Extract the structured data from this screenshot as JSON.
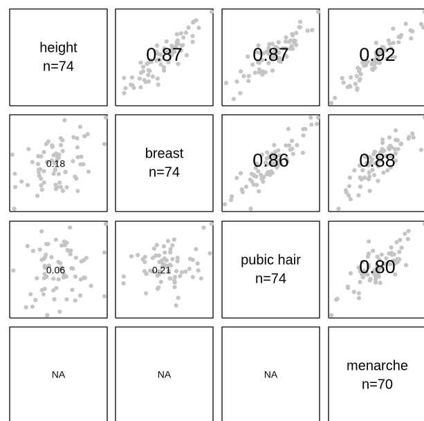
{
  "chart_data": {
    "type": "scatter",
    "title": "",
    "variables": [
      {
        "name": "height",
        "n_label": "n=74"
      },
      {
        "name": "breast",
        "n_label": "n=74"
      },
      {
        "name": "pubic hair",
        "n_label": "n=74"
      },
      {
        "name": "menarche",
        "n_label": "n=70"
      }
    ],
    "na_label": "NA",
    "point_color": "#c4c4c4",
    "correlations": [
      {
        "row": 0,
        "col": 1,
        "value": "0.87"
      },
      {
        "row": 0,
        "col": 2,
        "value": "0.87"
      },
      {
        "row": 0,
        "col": 3,
        "value": "0.92"
      },
      {
        "row": 1,
        "col": 2,
        "value": "0.86"
      },
      {
        "row": 1,
        "col": 3,
        "value": "0.88"
      },
      {
        "row": 2,
        "col": 3,
        "value": "0.80"
      },
      {
        "row": 1,
        "col": 0,
        "value": "0.18"
      },
      {
        "row": 2,
        "col": 0,
        "value": "0.06"
      },
      {
        "row": 2,
        "col": 1,
        "value": "0.21"
      }
    ],
    "na_cells": [
      {
        "row": 3,
        "col": 0
      },
      {
        "row": 3,
        "col": 1
      },
      {
        "row": 3,
        "col": 2
      }
    ]
  }
}
